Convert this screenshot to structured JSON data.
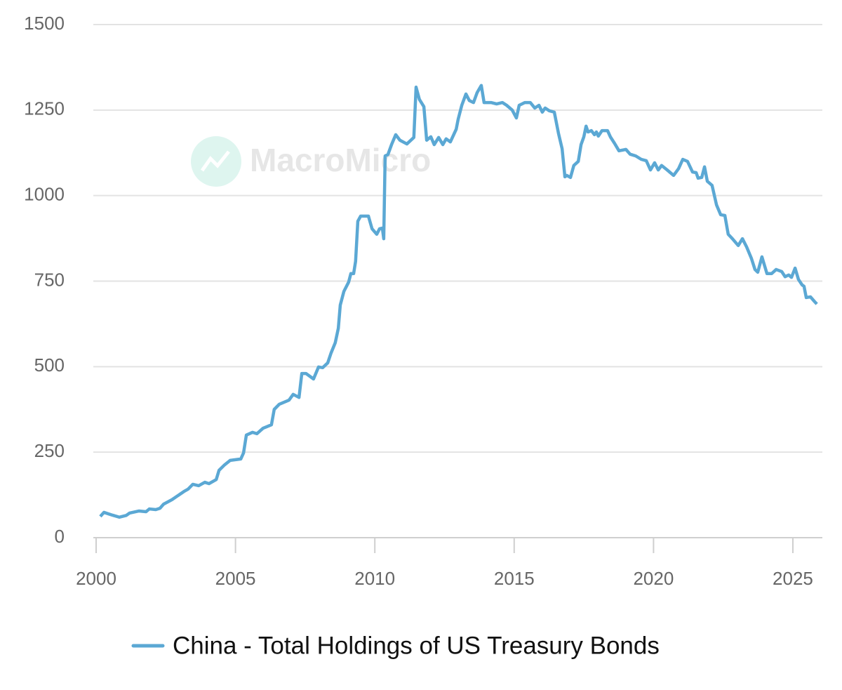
{
  "chart_data": {
    "type": "line",
    "watermark": "MacroMicro",
    "xlim": [
      2000,
      2026
    ],
    "xticks": [
      2000,
      2005,
      2010,
      2015,
      2020,
      2025
    ],
    "ylim": [
      0,
      1500
    ],
    "yticks": [
      0,
      250,
      500,
      750,
      1000,
      1250,
      1500
    ],
    "grid": true,
    "legend": "bottom",
    "x": [
      2000.15,
      2000.28,
      2000.58,
      2000.83,
      2001.08,
      2001.2,
      2001.54,
      2001.79,
      2001.91,
      2002.14,
      2002.29,
      2002.42,
      2002.72,
      2002.97,
      2003.15,
      2003.3,
      2003.47,
      2003.68,
      2003.9,
      2004.05,
      2004.31,
      2004.41,
      2004.61,
      2004.81,
      2005.19,
      2005.29,
      2005.39,
      2005.61,
      2005.77,
      2005.99,
      2006.29,
      2006.39,
      2006.57,
      2006.92,
      2007.07,
      2007.28,
      2007.38,
      2007.53,
      2007.8,
      2007.98,
      2008.13,
      2008.31,
      2008.43,
      2008.58,
      2008.69,
      2008.76,
      2008.89,
      2009.06,
      2009.14,
      2009.24,
      2009.31,
      2009.39,
      2009.49,
      2009.77,
      2009.9,
      2010.07,
      2010.17,
      2010.27,
      2010.32,
      2010.37,
      2010.47,
      2010.6,
      2010.75,
      2010.9,
      2011.15,
      2011.4,
      2011.48,
      2011.6,
      2011.76,
      2011.86,
      2012.01,
      2012.13,
      2012.29,
      2012.44,
      2012.56,
      2012.71,
      2012.92,
      2012.99,
      2013.12,
      2013.27,
      2013.39,
      2013.54,
      2013.67,
      2013.82,
      2013.92,
      2014.17,
      2014.37,
      2014.58,
      2014.73,
      2014.93,
      2015.08,
      2015.18,
      2015.38,
      2015.58,
      2015.74,
      2015.89,
      2016.01,
      2016.11,
      2016.26,
      2016.44,
      2016.59,
      2016.72,
      2016.82,
      2016.89,
      2017.02,
      2017.14,
      2017.3,
      2017.4,
      2017.5,
      2017.58,
      2017.65,
      2017.77,
      2017.88,
      2017.95,
      2018.02,
      2018.15,
      2018.35,
      2018.45,
      2018.6,
      2018.76,
      2019.01,
      2019.16,
      2019.36,
      2019.56,
      2019.74,
      2019.89,
      2020.04,
      2020.17,
      2020.29,
      2020.49,
      2020.72,
      2020.9,
      2021.05,
      2021.22,
      2021.4,
      2021.53,
      2021.6,
      2021.73,
      2021.83,
      2021.93,
      2022.1,
      2022.26,
      2022.41,
      2022.56,
      2022.68,
      2022.83,
      2023.04,
      2023.19,
      2023.34,
      2023.51,
      2023.64,
      2023.74,
      2023.89,
      2024.07,
      2024.24,
      2024.4,
      2024.6,
      2024.72,
      2024.85,
      2024.95,
      2025.08,
      2025.2,
      2025.33,
      2025.4,
      2025.48,
      2025.63,
      2025.78,
      2025.86
    ],
    "series": [
      {
        "name": "China - Total Holdings of US Treasury Bonds",
        "color": "#5ba8d4",
        "values": [
          62,
          74,
          66,
          60,
          65,
          72,
          78,
          76,
          84,
          82,
          86,
          98,
          111,
          125,
          135,
          142,
          156,
          152,
          162,
          158,
          170,
          197,
          213,
          226,
          230,
          248,
          300,
          308,
          304,
          320,
          330,
          375,
          390,
          402,
          419,
          410,
          480,
          480,
          464,
          499,
          497,
          511,
          540,
          570,
          612,
          680,
          720,
          747,
          772,
          772,
          808,
          925,
          940,
          940,
          903,
          887,
          903,
          905,
          874,
          1116,
          1120,
          1149,
          1178,
          1162,
          1151,
          1170,
          1317,
          1281,
          1260,
          1162,
          1172,
          1149,
          1170,
          1149,
          1166,
          1157,
          1194,
          1223,
          1264,
          1297,
          1278,
          1272,
          1301,
          1322,
          1272,
          1272,
          1268,
          1272,
          1264,
          1250,
          1227,
          1264,
          1272,
          1272,
          1256,
          1264,
          1244,
          1256,
          1248,
          1244,
          1182,
          1137,
          1055,
          1059,
          1053,
          1088,
          1100,
          1149,
          1172,
          1203,
          1186,
          1190,
          1178,
          1186,
          1174,
          1190,
          1190,
          1172,
          1153,
          1131,
          1135,
          1121,
          1116,
          1106,
          1102,
          1075,
          1096,
          1075,
          1088,
          1075,
          1059,
          1079,
          1106,
          1100,
          1069,
          1067,
          1051,
          1053,
          1084,
          1042,
          1030,
          973,
          944,
          942,
          887,
          874,
          854,
          874,
          850,
          817,
          784,
          776,
          821,
          772,
          772,
          784,
          778,
          763,
          768,
          761,
          788,
          755,
          739,
          735,
          702,
          704,
          690,
          683
        ]
      }
    ]
  }
}
